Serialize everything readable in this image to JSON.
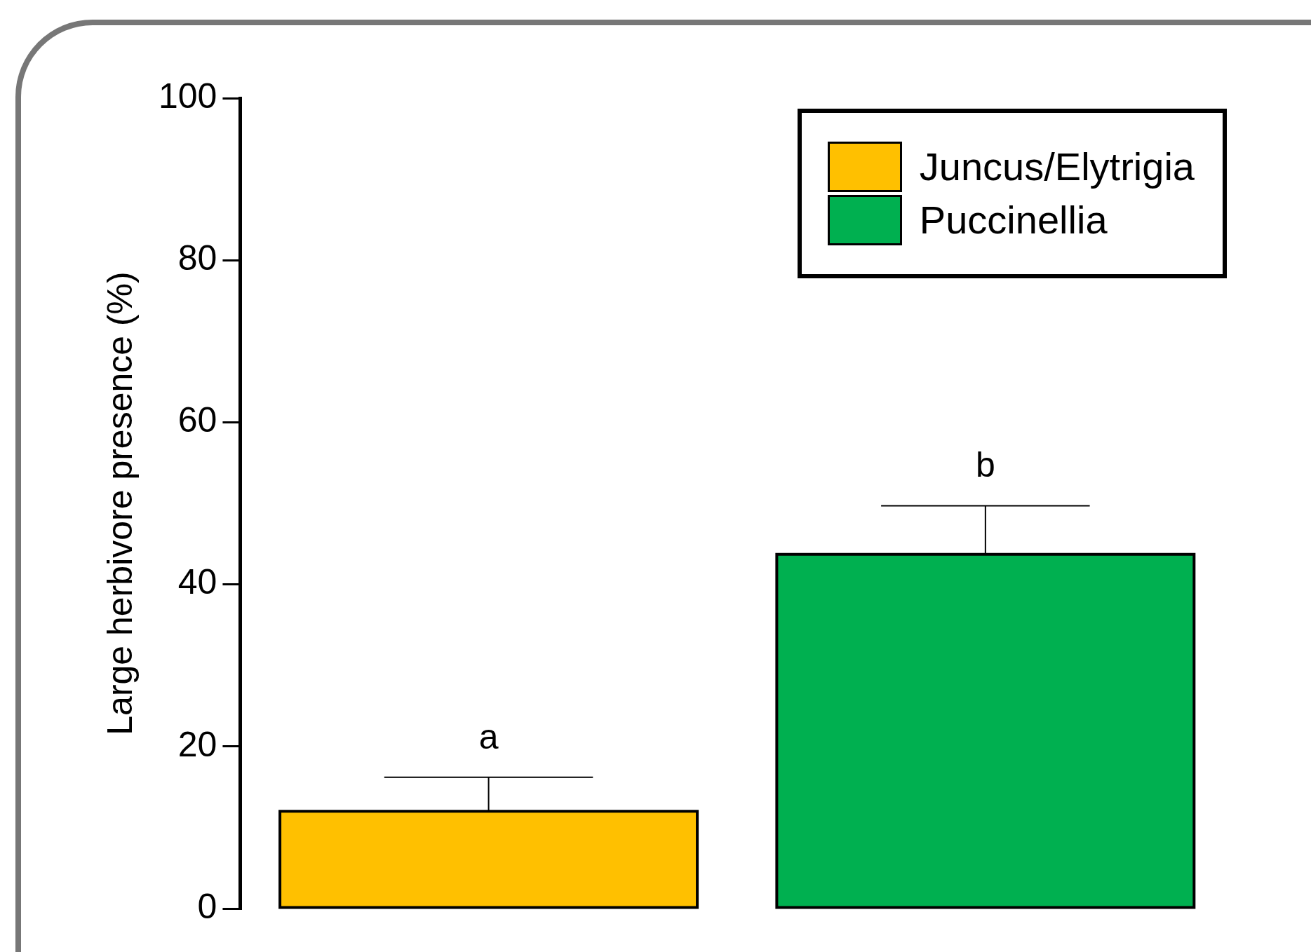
{
  "chart_data": {
    "type": "bar",
    "ylabel": "Large herbivore presence (%)",
    "categories": [
      null,
      null
    ],
    "stacked": true,
    "series": [
      {
        "name": "Juncus/Elytrigia",
        "color": "#ffc000",
        "values": [
          12,
          null
        ],
        "errors": [
          [
            12,
            16.2
          ],
          null
        ]
      },
      {
        "name": "Puccinellia",
        "color": "#00b050",
        "values": [
          null,
          43.7
        ],
        "errors": [
          null,
          [
            43.7,
            49.7
          ]
        ]
      }
    ],
    "ylim": [
      0,
      100
    ],
    "yticks": [
      0,
      20,
      40,
      60,
      80,
      100
    ],
    "grid": false,
    "legend": "top right",
    "annotations": [
      {
        "text": "a",
        "y": 16.2
      },
      {
        "text": "b",
        "y": 49.7
      }
    ]
  }
}
